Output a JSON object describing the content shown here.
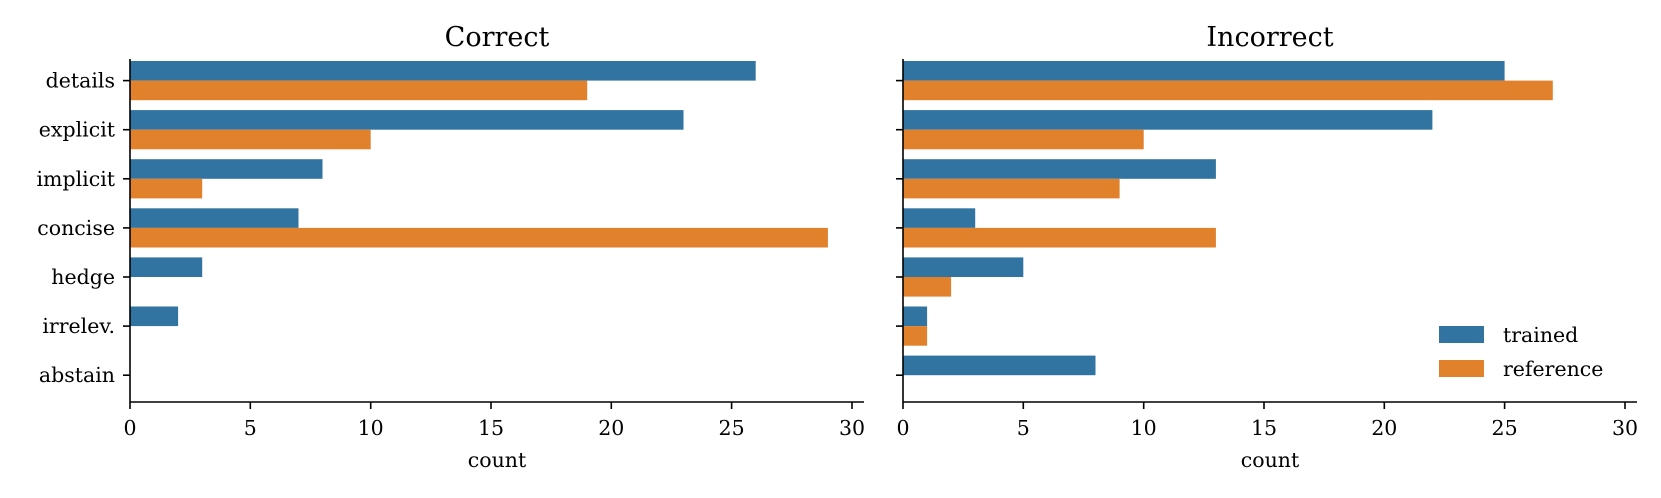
{
  "chart_data": [
    {
      "type": "bar",
      "orientation": "horizontal",
      "title": "Correct",
      "categories": [
        "details",
        "explicit",
        "implicit",
        "concise",
        "hedge",
        "irrelev.",
        "abstain"
      ],
      "series": [
        {
          "name": "trained",
          "values": [
            26,
            23,
            8,
            7,
            3,
            2,
            0
          ]
        },
        {
          "name": "reference",
          "values": [
            19,
            10,
            3,
            29,
            0,
            0,
            0
          ]
        }
      ],
      "xlabel": "count",
      "ylabel": "",
      "xlim": [
        0,
        30.5
      ],
      "xticks": [
        0,
        5,
        10,
        15,
        20,
        25,
        30
      ],
      "show_category_labels": true
    },
    {
      "type": "bar",
      "orientation": "horizontal",
      "title": "Incorrect",
      "categories": [
        "details",
        "explicit",
        "implicit",
        "concise",
        "hedge",
        "irrelev.",
        "abstain"
      ],
      "series": [
        {
          "name": "trained",
          "values": [
            25,
            22,
            13,
            3,
            5,
            1,
            8
          ]
        },
        {
          "name": "reference",
          "values": [
            27,
            10,
            9,
            13,
            2,
            1,
            0
          ]
        }
      ],
      "xlabel": "count",
      "ylabel": "",
      "xlim": [
        0,
        30.5
      ],
      "xticks": [
        0,
        5,
        10,
        15,
        20,
        25,
        30
      ],
      "show_category_labels": false
    }
  ],
  "legend": {
    "placement": "lower-right",
    "entries": [
      {
        "label": "trained",
        "color": "#3274a1"
      },
      {
        "label": "reference",
        "color": "#e1812c"
      }
    ]
  },
  "colors": {
    "trained": "#3274a1",
    "reference": "#e1812c"
  }
}
